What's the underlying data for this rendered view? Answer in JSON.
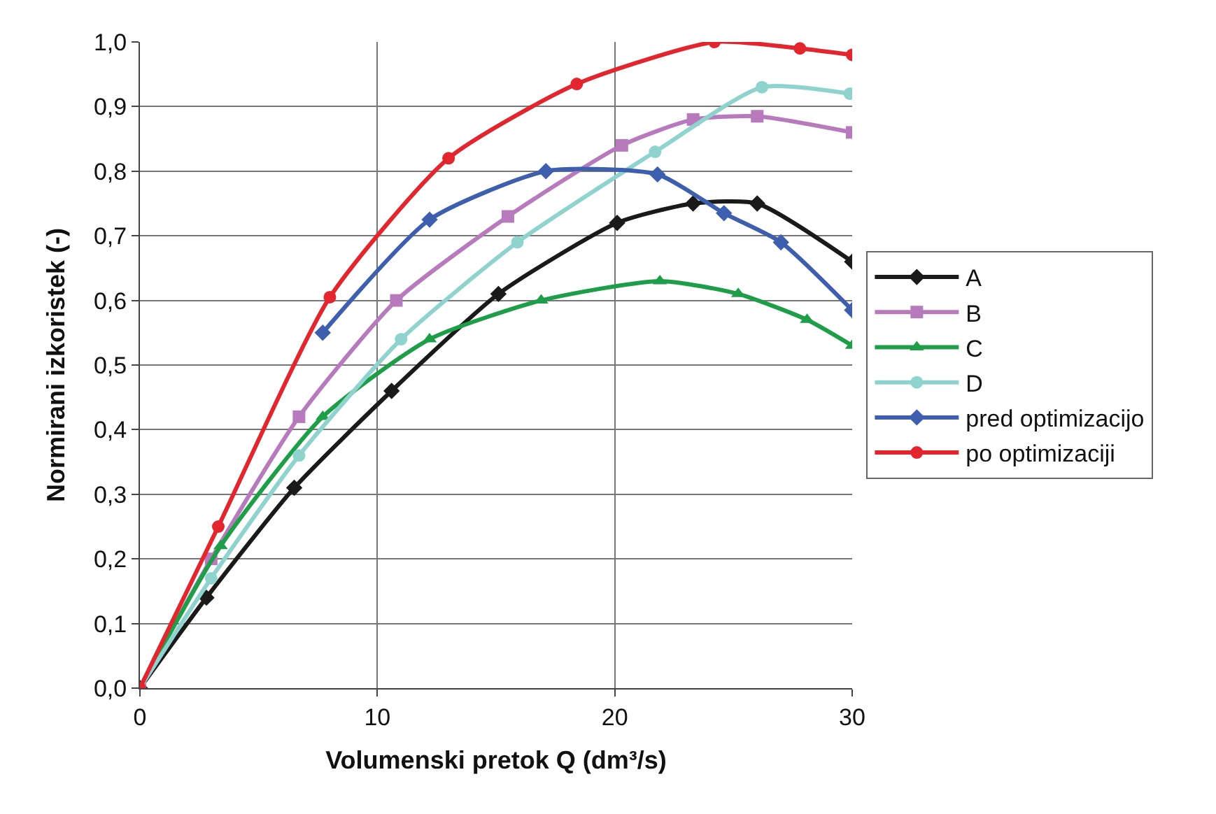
{
  "chart_data": {
    "type": "line",
    "xlabel": "Volumenski pretok Q (dm³/s)",
    "ylabel": "Normirani izkoristek (-)",
    "xlim": [
      0,
      30
    ],
    "ylim": [
      0,
      1.0
    ],
    "xticks": [
      0,
      10,
      20,
      30
    ],
    "yticks": [
      {
        "value": 0,
        "label": "0,0"
      },
      {
        "value": 0.1,
        "label": "0,1"
      },
      {
        "value": 0.2,
        "label": "0,2"
      },
      {
        "value": 0.3,
        "label": "0,3"
      },
      {
        "value": 0.4,
        "label": "0,4"
      },
      {
        "value": 0.5,
        "label": "0,5"
      },
      {
        "value": 0.6,
        "label": "0,6"
      },
      {
        "value": 0.7,
        "label": "0,7"
      },
      {
        "value": 0.8,
        "label": "0,8"
      },
      {
        "value": 0.9,
        "label": "0,9"
      },
      {
        "value": 1.0,
        "label": "1,0"
      }
    ],
    "grid": true,
    "legend": "right",
    "series": [
      {
        "name": "A",
        "color": "#1a1a1a",
        "marker": "diamond",
        "x": [
          0,
          2.8,
          6.5,
          10.6,
          15.1,
          20.1,
          23.3,
          26.0,
          30
        ],
        "values": [
          0,
          0.14,
          0.31,
          0.46,
          0.61,
          0.72,
          0.75,
          0.75,
          0.66
        ]
      },
      {
        "name": "B",
        "color": "#b77bbd",
        "marker": "square",
        "x": [
          0,
          3.0,
          6.7,
          10.8,
          15.5,
          20.3,
          23.3,
          26.0,
          30
        ],
        "values": [
          0,
          0.2,
          0.42,
          0.6,
          0.73,
          0.84,
          0.88,
          0.885,
          0.86
        ]
      },
      {
        "name": "C",
        "color": "#1e9e48",
        "marker": "triangle",
        "x": [
          0,
          3.4,
          7.7,
          12.2,
          16.9,
          21.9,
          25.2,
          28.1,
          30
        ],
        "values": [
          0,
          0.22,
          0.42,
          0.54,
          0.6,
          0.63,
          0.61,
          0.57,
          0.53
        ]
      },
      {
        "name": "D",
        "color": "#8fd3cf",
        "marker": "circle",
        "x": [
          0,
          3.0,
          6.7,
          11.0,
          15.9,
          21.7,
          26.2,
          29.9
        ],
        "values": [
          0,
          0.17,
          0.36,
          0.54,
          0.69,
          0.83,
          0.93,
          0.92
        ]
      },
      {
        "name": "pred optimizacijo",
        "color": "#3d5fae",
        "marker": "diamond",
        "x": [
          7.7,
          12.2,
          17.1,
          21.8,
          24.6,
          27.0,
          30
        ],
        "values": [
          0.55,
          0.725,
          0.8,
          0.795,
          0.735,
          0.69,
          0.585
        ]
      },
      {
        "name": "po optimizaciji",
        "color": "#e3262e",
        "marker": "circle",
        "x": [
          0,
          3.3,
          8.0,
          13.0,
          18.4,
          24.2,
          27.8,
          30
        ],
        "values": [
          0,
          0.25,
          0.605,
          0.82,
          0.935,
          1.0,
          0.99,
          0.98
        ]
      }
    ]
  }
}
